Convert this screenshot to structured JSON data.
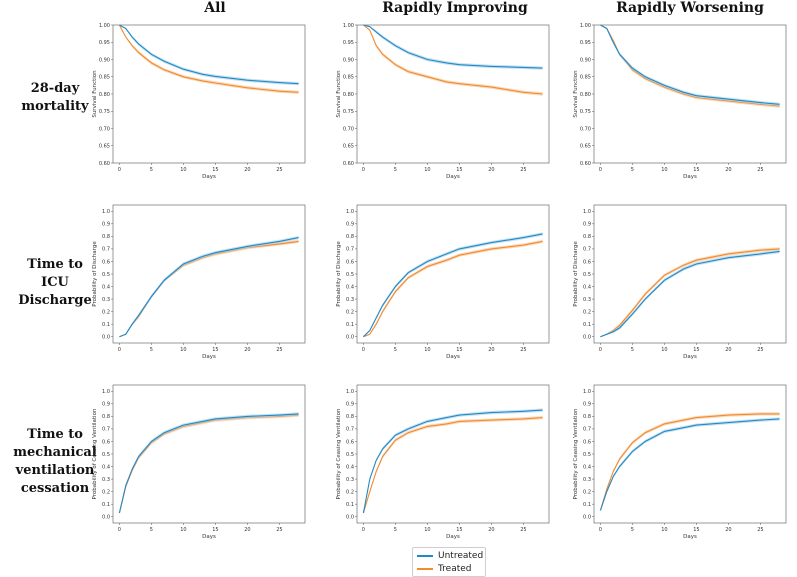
{
  "column_titles": [
    "All",
    "Rapidly Improving",
    "Rapidly Worsening"
  ],
  "row_titles": [
    [
      "28-day",
      "mortality"
    ],
    [
      "Time to",
      "ICU",
      "Discharge"
    ],
    [
      "Time to",
      "mechanical",
      "ventilation",
      "cessation"
    ]
  ],
  "legend": {
    "untreated": "Untreated",
    "treated": "Treated"
  },
  "colors": {
    "untreated": "#1f8ac7",
    "treated": "#f28a30",
    "untreated_band": "#aed3ea",
    "treated_band": "#f8c99e"
  },
  "chart_data": [
    {
      "type": "line",
      "panel": "28-day mortality / All",
      "xlabel": "Days",
      "ylabel": "Survival Function",
      "xlim": [
        -1,
        29
      ],
      "ylim": [
        0.6,
        1.0
      ],
      "xticks": [
        0,
        5,
        10,
        15,
        20,
        25
      ],
      "yticks": [
        0.6,
        0.65,
        0.7,
        0.75,
        0.8,
        0.85,
        0.9,
        0.95,
        1.0
      ],
      "series": [
        {
          "name": "Untreated",
          "x": [
            0,
            1,
            2,
            3,
            5,
            7,
            10,
            13,
            15,
            20,
            25,
            28
          ],
          "y": [
            1.0,
            0.99,
            0.965,
            0.945,
            0.915,
            0.895,
            0.872,
            0.857,
            0.851,
            0.84,
            0.833,
            0.83
          ]
        },
        {
          "name": "Treated",
          "x": [
            0,
            1,
            2,
            3,
            5,
            7,
            10,
            13,
            15,
            20,
            25,
            28
          ],
          "y": [
            1.0,
            0.965,
            0.94,
            0.92,
            0.89,
            0.87,
            0.85,
            0.838,
            0.832,
            0.818,
            0.808,
            0.805
          ]
        }
      ]
    },
    {
      "type": "line",
      "panel": "28-day mortality / Rapidly Improving",
      "xlabel": "Days",
      "ylabel": "Survival Function",
      "xlim": [
        -1,
        29
      ],
      "ylim": [
        0.6,
        1.0
      ],
      "xticks": [
        0,
        5,
        10,
        15,
        20,
        25
      ],
      "yticks": [
        0.6,
        0.65,
        0.7,
        0.75,
        0.8,
        0.85,
        0.9,
        0.95,
        1.0
      ],
      "series": [
        {
          "name": "Untreated",
          "x": [
            0,
            1,
            2,
            3,
            5,
            7,
            10,
            13,
            15,
            20,
            25,
            28
          ],
          "y": [
            1.0,
            0.995,
            0.98,
            0.965,
            0.94,
            0.92,
            0.9,
            0.89,
            0.885,
            0.88,
            0.877,
            0.875
          ]
        },
        {
          "name": "Treated",
          "x": [
            0,
            1,
            2,
            3,
            5,
            7,
            10,
            13,
            15,
            20,
            25,
            28
          ],
          "y": [
            1.0,
            0.985,
            0.94,
            0.915,
            0.885,
            0.865,
            0.85,
            0.835,
            0.83,
            0.82,
            0.805,
            0.8
          ]
        }
      ]
    },
    {
      "type": "line",
      "panel": "28-day mortality / Rapidly Worsening",
      "xlabel": "Days",
      "ylabel": "Survival Function",
      "xlim": [
        -1,
        29
      ],
      "ylim": [
        0.6,
        1.0
      ],
      "xticks": [
        0,
        5,
        10,
        15,
        20,
        25
      ],
      "yticks": [
        0.6,
        0.65,
        0.7,
        0.75,
        0.8,
        0.85,
        0.9,
        0.95,
        1.0
      ],
      "series": [
        {
          "name": "Untreated",
          "x": [
            0,
            1,
            2,
            3,
            5,
            7,
            10,
            13,
            15,
            20,
            25,
            28
          ],
          "y": [
            1.0,
            0.99,
            0.95,
            0.915,
            0.875,
            0.85,
            0.825,
            0.805,
            0.795,
            0.785,
            0.775,
            0.77
          ]
        },
        {
          "name": "Treated",
          "x": [
            0,
            1,
            2,
            3,
            5,
            7,
            10,
            13,
            15,
            20,
            25,
            28
          ],
          "y": [
            1.0,
            0.99,
            0.955,
            0.915,
            0.87,
            0.845,
            0.82,
            0.8,
            0.79,
            0.78,
            0.77,
            0.765
          ]
        }
      ]
    },
    {
      "type": "line",
      "panel": "Time to ICU Discharge / All",
      "xlabel": "Days",
      "ylabel": "Probability of Discharge",
      "xlim": [
        -1,
        29
      ],
      "ylim": [
        -0.05,
        1.05
      ],
      "xticks": [
        0,
        5,
        10,
        15,
        20,
        25
      ],
      "yticks": [
        0.0,
        0.1,
        0.2,
        0.3,
        0.4,
        0.5,
        0.6,
        0.7,
        0.8,
        0.9,
        1.0
      ],
      "series": [
        {
          "name": "Untreated",
          "x": [
            0,
            1,
            2,
            3,
            5,
            7,
            10,
            13,
            15,
            20,
            25,
            28
          ],
          "y": [
            0.0,
            0.02,
            0.1,
            0.17,
            0.32,
            0.45,
            0.58,
            0.64,
            0.67,
            0.72,
            0.76,
            0.79
          ]
        },
        {
          "name": "Treated",
          "x": [
            0,
            1,
            2,
            3,
            5,
            7,
            10,
            13,
            15,
            20,
            25,
            28
          ],
          "y": [
            0.0,
            0.02,
            0.1,
            0.16,
            0.32,
            0.45,
            0.57,
            0.63,
            0.66,
            0.71,
            0.74,
            0.76
          ]
        }
      ]
    },
    {
      "type": "line",
      "panel": "Time to ICU Discharge / Rapidly Improving",
      "xlabel": "Days",
      "ylabel": "Probability of Discharge",
      "xlim": [
        -1,
        29
      ],
      "ylim": [
        -0.05,
        1.05
      ],
      "xticks": [
        0,
        5,
        10,
        15,
        20,
        25
      ],
      "yticks": [
        0.0,
        0.1,
        0.2,
        0.3,
        0.4,
        0.5,
        0.6,
        0.7,
        0.8,
        0.9,
        1.0
      ],
      "series": [
        {
          "name": "Untreated",
          "x": [
            0,
            1,
            2,
            3,
            5,
            7,
            10,
            13,
            15,
            20,
            25,
            28
          ],
          "y": [
            0.0,
            0.05,
            0.15,
            0.25,
            0.4,
            0.51,
            0.6,
            0.66,
            0.7,
            0.75,
            0.79,
            0.82
          ]
        },
        {
          "name": "Treated",
          "x": [
            0,
            1,
            2,
            3,
            5,
            7,
            10,
            13,
            15,
            20,
            25,
            28
          ],
          "y": [
            0.0,
            0.02,
            0.1,
            0.2,
            0.36,
            0.47,
            0.56,
            0.61,
            0.65,
            0.7,
            0.73,
            0.76
          ]
        }
      ]
    },
    {
      "type": "line",
      "panel": "Time to ICU Discharge / Rapidly Worsening",
      "xlabel": "Days",
      "ylabel": "Probability of Discharge",
      "xlim": [
        -1,
        29
      ],
      "ylim": [
        -0.05,
        1.05
      ],
      "xticks": [
        0,
        5,
        10,
        15,
        20,
        25
      ],
      "yticks": [
        0.0,
        0.1,
        0.2,
        0.3,
        0.4,
        0.5,
        0.6,
        0.7,
        0.8,
        0.9,
        1.0
      ],
      "series": [
        {
          "name": "Untreated",
          "x": [
            0,
            1,
            2,
            3,
            5,
            7,
            10,
            13,
            15,
            20,
            25,
            28
          ],
          "y": [
            0.0,
            0.02,
            0.04,
            0.07,
            0.18,
            0.3,
            0.45,
            0.54,
            0.58,
            0.63,
            0.66,
            0.68
          ]
        },
        {
          "name": "Treated",
          "x": [
            0,
            1,
            2,
            3,
            5,
            7,
            10,
            13,
            15,
            20,
            25,
            28
          ],
          "y": [
            0.0,
            0.02,
            0.05,
            0.09,
            0.21,
            0.34,
            0.49,
            0.57,
            0.61,
            0.66,
            0.69,
            0.7
          ]
        }
      ]
    },
    {
      "type": "line",
      "panel": "Time to mechanical ventilation cessation / All",
      "xlabel": "Days",
      "ylabel": "Probability of Ceasing Ventilation",
      "xlim": [
        -1,
        29
      ],
      "ylim": [
        -0.05,
        1.05
      ],
      "xticks": [
        0,
        5,
        10,
        15,
        20,
        25
      ],
      "yticks": [
        0.0,
        0.1,
        0.2,
        0.3,
        0.4,
        0.5,
        0.6,
        0.7,
        0.8,
        0.9,
        1.0
      ],
      "series": [
        {
          "name": "Untreated",
          "x": [
            0,
            1,
            2,
            3,
            5,
            7,
            10,
            13,
            15,
            20,
            25,
            28
          ],
          "y": [
            0.03,
            0.25,
            0.38,
            0.48,
            0.6,
            0.67,
            0.73,
            0.76,
            0.78,
            0.8,
            0.81,
            0.82
          ]
        },
        {
          "name": "Treated",
          "x": [
            0,
            1,
            2,
            3,
            5,
            7,
            10,
            13,
            15,
            20,
            25,
            28
          ],
          "y": [
            0.03,
            0.24,
            0.37,
            0.47,
            0.59,
            0.66,
            0.72,
            0.75,
            0.77,
            0.79,
            0.8,
            0.81
          ]
        }
      ]
    },
    {
      "type": "line",
      "panel": "Time to mechanical ventilation cessation / Rapidly Improving",
      "xlabel": "Days",
      "ylabel": "Probability of Ceasing Ventilation",
      "xlim": [
        -1,
        29
      ],
      "ylim": [
        -0.05,
        1.05
      ],
      "xticks": [
        0,
        5,
        10,
        15,
        20,
        25
      ],
      "yticks": [
        0.0,
        0.1,
        0.2,
        0.3,
        0.4,
        0.5,
        0.6,
        0.7,
        0.8,
        0.9,
        1.0
      ],
      "series": [
        {
          "name": "Untreated",
          "x": [
            0,
            1,
            2,
            3,
            5,
            7,
            10,
            13,
            15,
            20,
            25,
            28
          ],
          "y": [
            0.03,
            0.3,
            0.45,
            0.54,
            0.65,
            0.7,
            0.76,
            0.79,
            0.81,
            0.83,
            0.84,
            0.85
          ]
        },
        {
          "name": "Treated",
          "x": [
            0,
            1,
            2,
            3,
            5,
            7,
            10,
            13,
            15,
            20,
            25,
            28
          ],
          "y": [
            0.03,
            0.2,
            0.36,
            0.48,
            0.61,
            0.67,
            0.72,
            0.74,
            0.76,
            0.77,
            0.78,
            0.79
          ]
        }
      ]
    },
    {
      "type": "line",
      "panel": "Time to mechanical ventilation cessation / Rapidly Worsening",
      "xlabel": "Days",
      "ylabel": "Probability of Ceasing Ventilation",
      "xlim": [
        -1,
        29
      ],
      "ylim": [
        -0.05,
        1.05
      ],
      "xticks": [
        0,
        5,
        10,
        15,
        20,
        25
      ],
      "yticks": [
        0.0,
        0.1,
        0.2,
        0.3,
        0.4,
        0.5,
        0.6,
        0.7,
        0.8,
        0.9,
        1.0
      ],
      "series": [
        {
          "name": "Untreated",
          "x": [
            0,
            1,
            2,
            3,
            5,
            7,
            10,
            13,
            15,
            20,
            25,
            28
          ],
          "y": [
            0.05,
            0.2,
            0.32,
            0.4,
            0.52,
            0.6,
            0.68,
            0.71,
            0.73,
            0.75,
            0.77,
            0.78
          ]
        },
        {
          "name": "Treated",
          "x": [
            0,
            1,
            2,
            3,
            5,
            7,
            10,
            13,
            15,
            20,
            25,
            28
          ],
          "y": [
            0.05,
            0.22,
            0.36,
            0.46,
            0.59,
            0.67,
            0.74,
            0.77,
            0.79,
            0.81,
            0.82,
            0.82
          ]
        }
      ]
    }
  ]
}
